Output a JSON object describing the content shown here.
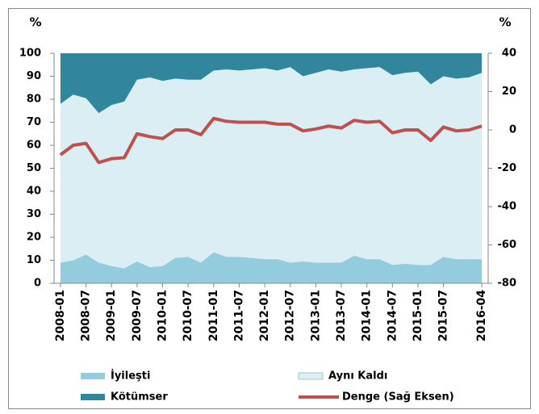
{
  "chart_data": {
    "type": "stacked_area_line",
    "y_axis_label": "%",
    "y2_axis_label": "%",
    "categories": [
      "2008-01",
      null,
      "2008-07",
      null,
      "2009-01",
      null,
      "2009-07",
      null,
      "2010-01",
      null,
      "2010-07",
      null,
      "2011-01",
      null,
      "2011-07",
      null,
      "2012-01",
      null,
      "2012-07",
      null,
      "2013-01",
      null,
      "2013-07",
      null,
      "2014-01",
      null,
      "2014-07",
      null,
      "2015-01",
      null,
      "2015-07",
      null,
      null,
      "2016-04"
    ],
    "series": [
      {
        "name": "İyileşti",
        "color": "#93cddd",
        "values": [
          9,
          10,
          12.5,
          9,
          7.5,
          6.5,
          9.5,
          7,
          7.5,
          11,
          11.5,
          9,
          13.5,
          11.5,
          11.5,
          11,
          10.5,
          10.5,
          9,
          9.5,
          9,
          9,
          9,
          12,
          10.5,
          10.5,
          8,
          8.5,
          8,
          8,
          11.5,
          10.5,
          10.5,
          10.5
        ]
      },
      {
        "name": "Aynı Kaldı",
        "color": "#dbeef4",
        "values": [
          69,
          72,
          68,
          65,
          70,
          72.5,
          79,
          82.5,
          80.5,
          78,
          77,
          79.5,
          79,
          81.5,
          81,
          82,
          83,
          82,
          85,
          80.5,
          82.5,
          84,
          83,
          81,
          83,
          83.5,
          82.5,
          83,
          84,
          78.5,
          78.5,
          78.5,
          79,
          81
        ]
      },
      {
        "name": "Kötümser",
        "color": "#31859c",
        "values": [
          22,
          18,
          19.5,
          26,
          22.5,
          21,
          11.5,
          10.5,
          12,
          11,
          11.5,
          11.5,
          7.5,
          7,
          7.5,
          7,
          6.5,
          7.5,
          6,
          10,
          8.5,
          7,
          8,
          7,
          6.5,
          6,
          9.5,
          8.5,
          8,
          13.5,
          10,
          11,
          10.5,
          8.5
        ]
      },
      {
        "name": "Denge (Sağ Eksen)",
        "color": "#c0504d",
        "axis": "y2",
        "values": [
          -13,
          -8,
          -7,
          -17,
          -15,
          -14.5,
          -2,
          -3.5,
          -4.5,
          0,
          0,
          -2.5,
          6,
          4.5,
          4,
          4,
          4,
          3,
          3,
          -0.5,
          0.5,
          2,
          1,
          5,
          4,
          4.5,
          -1.5,
          0,
          0,
          -5.5,
          1.5,
          -0.5,
          0,
          2
        ]
      }
    ],
    "ylim": [
      0,
      100
    ],
    "yticks": [
      0,
      10,
      20,
      30,
      40,
      50,
      60,
      70,
      80,
      90,
      100
    ],
    "y2lim": [
      -80,
      40
    ],
    "y2ticks": [
      -80,
      -60,
      -40,
      -20,
      0,
      20,
      40
    ],
    "grid": false
  }
}
